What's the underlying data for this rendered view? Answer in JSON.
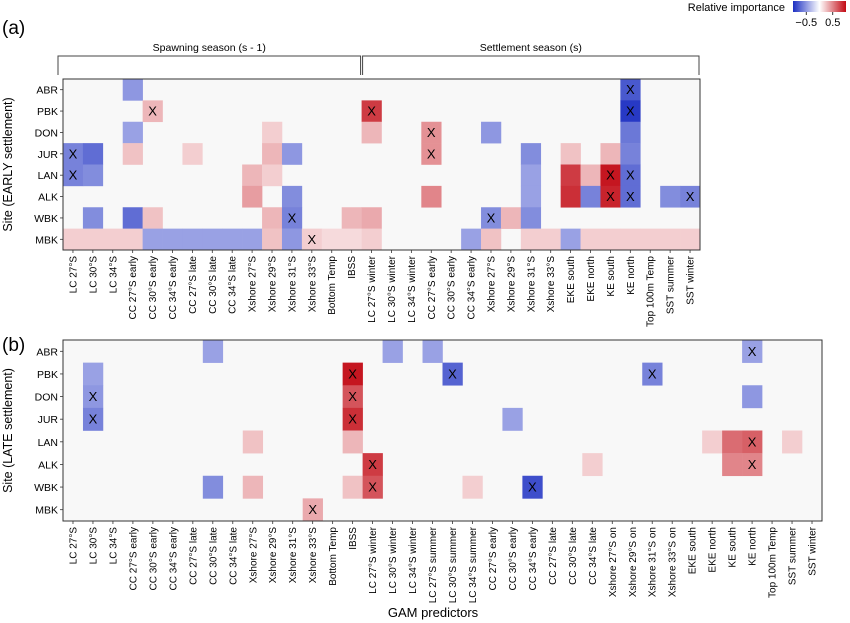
{
  "legend": {
    "title": "Relative importance",
    "ticks": [
      {
        "value": -0.5,
        "label": "−0.5"
      },
      {
        "value": 0.5,
        "label": "0.5"
      }
    ],
    "min": -1,
    "max": 1,
    "colors": {
      "negative": "#1c2fc2",
      "neutral": "#ffffff",
      "positive": "#c20a14"
    }
  },
  "global_xlabel": "GAM predictors",
  "chart_data": [
    {
      "type": "heatmap",
      "panel_label": "(a)",
      "ylabel": "Site (EARLY settlement)",
      "rows": [
        "ABR",
        "PBK",
        "DON",
        "JUR",
        "LAN",
        "ALK",
        "WBK",
        "MBK"
      ],
      "columns": [
        "LC 27°S",
        "LC 30°S",
        "LC 34°S",
        "CC 27°S early",
        "CC 30°S early",
        "CC 34°S early",
        "CC 27°S late",
        "CC 30°S late",
        "CC 34°S late",
        "Xshore 27°S",
        "Xshore 29°S",
        "Xshore 31°S",
        "Xshore 33°S",
        "Bottom Temp",
        "IBSS",
        "LC 27°S winter",
        "LC 30°S winter",
        "LC 34°S winter",
        "CC 27°S early",
        "CC 30°S early",
        "CC 34°S early",
        "Xshore 27°S",
        "Xshore 29°S",
        "Xshore 31°S",
        "Xshore 33°S",
        "EKE south",
        "EKE north",
        "KE south",
        "KE north",
        "Top 100m Temp",
        "SST summer",
        "SST winter"
      ],
      "seasons": [
        {
          "label": "Spawning season (s - 1)",
          "first_col": 0,
          "last_col": 14
        },
        {
          "label": "Settlement season (s)",
          "first_col": 15,
          "last_col": 31
        }
      ],
      "cells": [
        {
          "row": 0,
          "col": 3,
          "value": -0.5
        },
        {
          "row": 0,
          "col": 28,
          "value": -0.8,
          "x": true
        },
        {
          "row": 1,
          "col": 4,
          "value": 0.3,
          "x": true
        },
        {
          "row": 1,
          "col": 15,
          "value": 0.8,
          "x": true
        },
        {
          "row": 1,
          "col": 28,
          "value": -0.95,
          "x": true
        },
        {
          "row": 2,
          "col": 3,
          "value": -0.45
        },
        {
          "row": 2,
          "col": 10,
          "value": 0.2
        },
        {
          "row": 2,
          "col": 15,
          "value": 0.3
        },
        {
          "row": 2,
          "col": 18,
          "value": 0.45,
          "x": true
        },
        {
          "row": 2,
          "col": 21,
          "value": -0.5
        },
        {
          "row": 2,
          "col": 28,
          "value": -0.65
        },
        {
          "row": 3,
          "col": 0,
          "value": -0.6,
          "x": true
        },
        {
          "row": 3,
          "col": 1,
          "value": -0.7
        },
        {
          "row": 3,
          "col": 3,
          "value": 0.25
        },
        {
          "row": 3,
          "col": 6,
          "value": 0.2
        },
        {
          "row": 3,
          "col": 10,
          "value": 0.3
        },
        {
          "row": 3,
          "col": 11,
          "value": -0.5
        },
        {
          "row": 3,
          "col": 18,
          "value": 0.45,
          "x": true
        },
        {
          "row": 3,
          "col": 23,
          "value": -0.55
        },
        {
          "row": 3,
          "col": 25,
          "value": 0.25
        },
        {
          "row": 3,
          "col": 27,
          "value": 0.3
        },
        {
          "row": 3,
          "col": 28,
          "value": -0.6
        },
        {
          "row": 4,
          "col": 0,
          "value": -0.6,
          "x": true
        },
        {
          "row": 4,
          "col": 1,
          "value": -0.55
        },
        {
          "row": 4,
          "col": 9,
          "value": 0.3
        },
        {
          "row": 4,
          "col": 10,
          "value": 0.2
        },
        {
          "row": 4,
          "col": 23,
          "value": -0.45
        },
        {
          "row": 4,
          "col": 25,
          "value": 0.8
        },
        {
          "row": 4,
          "col": 26,
          "value": 0.3
        },
        {
          "row": 4,
          "col": 27,
          "value": 0.95,
          "x": true
        },
        {
          "row": 4,
          "col": 28,
          "value": -0.7,
          "x": true
        },
        {
          "row": 5,
          "col": 9,
          "value": 0.4
        },
        {
          "row": 5,
          "col": 11,
          "value": -0.55
        },
        {
          "row": 5,
          "col": 18,
          "value": 0.5
        },
        {
          "row": 5,
          "col": 23,
          "value": -0.45
        },
        {
          "row": 5,
          "col": 25,
          "value": 0.85
        },
        {
          "row": 5,
          "col": 26,
          "value": -0.6
        },
        {
          "row": 5,
          "col": 27,
          "value": 0.9,
          "x": true
        },
        {
          "row": 5,
          "col": 28,
          "value": -0.7,
          "x": true
        },
        {
          "row": 5,
          "col": 30,
          "value": -0.55
        },
        {
          "row": 5,
          "col": 31,
          "value": -0.6,
          "x": true
        },
        {
          "row": 6,
          "col": 1,
          "value": -0.55
        },
        {
          "row": 6,
          "col": 3,
          "value": -0.7
        },
        {
          "row": 6,
          "col": 4,
          "value": 0.25
        },
        {
          "row": 6,
          "col": 10,
          "value": 0.3
        },
        {
          "row": 6,
          "col": 11,
          "value": -0.6,
          "x": true
        },
        {
          "row": 6,
          "col": 14,
          "value": 0.3
        },
        {
          "row": 6,
          "col": 15,
          "value": 0.35
        },
        {
          "row": 6,
          "col": 21,
          "value": -0.55,
          "x": true
        },
        {
          "row": 6,
          "col": 22,
          "value": 0.3
        },
        {
          "row": 6,
          "col": 23,
          "value": -0.55
        },
        {
          "row": 7,
          "col": 0,
          "value": 0.2
        },
        {
          "row": 7,
          "col": 1,
          "value": 0.2
        },
        {
          "row": 7,
          "col": 2,
          "value": 0.2
        },
        {
          "row": 7,
          "col": 3,
          "value": 0.2
        },
        {
          "row": 7,
          "col": 4,
          "value": -0.45
        },
        {
          "row": 7,
          "col": 5,
          "value": -0.45
        },
        {
          "row": 7,
          "col": 6,
          "value": -0.45
        },
        {
          "row": 7,
          "col": 7,
          "value": -0.45
        },
        {
          "row": 7,
          "col": 8,
          "value": -0.45
        },
        {
          "row": 7,
          "col": 9,
          "value": -0.45
        },
        {
          "row": 7,
          "col": 10,
          "value": 0.25
        },
        {
          "row": 7,
          "col": 11,
          "value": -0.5
        },
        {
          "row": 7,
          "col": 12,
          "value": 0.2,
          "x": true
        },
        {
          "row": 7,
          "col": 13,
          "value": 0.15
        },
        {
          "row": 7,
          "col": 14,
          "value": 0.15
        },
        {
          "row": 7,
          "col": 15,
          "value": 0.2
        },
        {
          "row": 7,
          "col": 20,
          "value": -0.45
        },
        {
          "row": 7,
          "col": 21,
          "value": 0.25
        },
        {
          "row": 7,
          "col": 23,
          "value": 0.2
        },
        {
          "row": 7,
          "col": 24,
          "value": 0.2
        },
        {
          "row": 7,
          "col": 25,
          "value": -0.45
        },
        {
          "row": 7,
          "col": 26,
          "value": 0.2
        },
        {
          "row": 7,
          "col": 27,
          "value": 0.2
        },
        {
          "row": 7,
          "col": 28,
          "value": 0.2
        },
        {
          "row": 7,
          "col": 29,
          "value": 0.2
        },
        {
          "row": 7,
          "col": 30,
          "value": 0.2
        },
        {
          "row": 7,
          "col": 31,
          "value": 0.2
        }
      ]
    },
    {
      "type": "heatmap",
      "panel_label": "(b)",
      "ylabel": "Site (LATE settlement)",
      "rows": [
        "ABR",
        "PBK",
        "DON",
        "JUR",
        "LAN",
        "ALK",
        "WBK",
        "MBK"
      ],
      "columns": [
        "LC 27°S",
        "LC 30°S",
        "LC 34°S",
        "CC 27°S early",
        "CC 30°S early",
        "CC 34°S early",
        "CC 27°S late",
        "CC 30°S late",
        "CC 34°S late",
        "Xshore 27°S",
        "Xshore 29°S",
        "Xshore 31°S",
        "Xshore 33°S",
        "Bottom Temp",
        "IBSS",
        "LC 27°S winter",
        "LC 30°S winter",
        "LC 34°S winter",
        "LC 27°S summer",
        "LC 30°S summer",
        "LC 34°S summer",
        "CC 27°S early",
        "CC 30°S early",
        "CC 34°S early",
        "CC 27°S late",
        "CC 30°S late",
        "CC 34°S late",
        "Xshore 27°S on",
        "Xshore 29°S on",
        "Xshore 31°S on",
        "Xshore 33°S on",
        "EKE south",
        "EKE north",
        "KE south",
        "KE north",
        "Top 100m Temp",
        "SST summer",
        "SST winter"
      ],
      "cells": [
        {
          "row": 0,
          "col": 7,
          "value": -0.45
        },
        {
          "row": 0,
          "col": 16,
          "value": -0.45
        },
        {
          "row": 0,
          "col": 18,
          "value": -0.45
        },
        {
          "row": 0,
          "col": 34,
          "value": -0.45,
          "x": true
        },
        {
          "row": 1,
          "col": 1,
          "value": -0.45
        },
        {
          "row": 1,
          "col": 14,
          "value": 0.95,
          "x": true
        },
        {
          "row": 1,
          "col": 19,
          "value": -0.75,
          "x": true
        },
        {
          "row": 1,
          "col": 29,
          "value": -0.6,
          "x": true
        },
        {
          "row": 2,
          "col": 1,
          "value": -0.5,
          "x": true
        },
        {
          "row": 2,
          "col": 14,
          "value": 0.7,
          "x": true
        },
        {
          "row": 2,
          "col": 34,
          "value": -0.5
        },
        {
          "row": 3,
          "col": 1,
          "value": -0.6,
          "x": true
        },
        {
          "row": 3,
          "col": 14,
          "value": 0.85,
          "x": true
        },
        {
          "row": 3,
          "col": 22,
          "value": -0.45
        },
        {
          "row": 4,
          "col": 9,
          "value": 0.25
        },
        {
          "row": 4,
          "col": 14,
          "value": 0.3
        },
        {
          "row": 4,
          "col": 32,
          "value": 0.2
        },
        {
          "row": 4,
          "col": 33,
          "value": 0.6
        },
        {
          "row": 4,
          "col": 34,
          "value": 0.65,
          "x": true
        },
        {
          "row": 4,
          "col": 36,
          "value": 0.2
        },
        {
          "row": 5,
          "col": 15,
          "value": 0.8,
          "x": true
        },
        {
          "row": 5,
          "col": 26,
          "value": 0.2
        },
        {
          "row": 5,
          "col": 33,
          "value": 0.5
        },
        {
          "row": 5,
          "col": 34,
          "value": 0.5,
          "x": true
        },
        {
          "row": 6,
          "col": 7,
          "value": -0.55
        },
        {
          "row": 6,
          "col": 9,
          "value": 0.3
        },
        {
          "row": 6,
          "col": 14,
          "value": 0.25
        },
        {
          "row": 6,
          "col": 15,
          "value": 0.7,
          "x": true
        },
        {
          "row": 6,
          "col": 20,
          "value": 0.2
        },
        {
          "row": 6,
          "col": 23,
          "value": -0.85,
          "x": true
        },
        {
          "row": 7,
          "col": 12,
          "value": 0.35,
          "x": true
        }
      ]
    }
  ]
}
